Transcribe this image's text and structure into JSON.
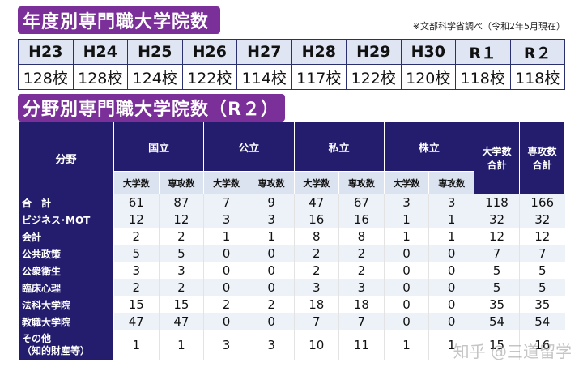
{
  "title1": "年度別専門職大学院数",
  "note": "※文部科学省調べ（令和2年5月現在）",
  "years": {
    "headers": [
      "H23",
      "H24",
      "H25",
      "H26",
      "H27",
      "H28",
      "H29",
      "H30",
      "R１",
      "R２"
    ],
    "values": [
      "128校",
      "128校",
      "124校",
      "122校",
      "114校",
      "117校",
      "122校",
      "120校",
      "118校",
      "118校"
    ]
  },
  "title2": "分野別専門職大学院数（R２）",
  "field": {
    "col_field": "分野",
    "groups": [
      "国立",
      "公立",
      "私立",
      "株立"
    ],
    "sub": [
      "大学数",
      "専攻数"
    ],
    "total_univ": "大学数\n合計",
    "total_major": "専攻数\n合計",
    "rows": [
      {
        "label": "合　計",
        "values": [
          "61",
          "87",
          "7",
          "9",
          "47",
          "67",
          "3",
          "3",
          "118",
          "166"
        ]
      },
      {
        "label": "ビジネス･MOT",
        "values": [
          "12",
          "12",
          "3",
          "3",
          "16",
          "16",
          "1",
          "1",
          "32",
          "32"
        ]
      },
      {
        "label": "会計",
        "values": [
          "2",
          "2",
          "1",
          "1",
          "8",
          "8",
          "1",
          "1",
          "12",
          "12"
        ]
      },
      {
        "label": "公共政策",
        "values": [
          "5",
          "5",
          "0",
          "0",
          "2",
          "2",
          "0",
          "0",
          "7",
          "7"
        ]
      },
      {
        "label": "公衆衛生",
        "values": [
          "3",
          "3",
          "0",
          "0",
          "2",
          "2",
          "0",
          "0",
          "5",
          "5"
        ]
      },
      {
        "label": "臨床心理",
        "values": [
          "2",
          "2",
          "0",
          "0",
          "3",
          "3",
          "0",
          "0",
          "5",
          "5"
        ]
      },
      {
        "label": "法科大学院",
        "values": [
          "15",
          "15",
          "2",
          "2",
          "18",
          "18",
          "0",
          "0",
          "35",
          "35"
        ]
      },
      {
        "label": "教職大学院",
        "values": [
          "47",
          "47",
          "0",
          "0",
          "7",
          "7",
          "0",
          "0",
          "54",
          "54"
        ]
      },
      {
        "label": "その他\n（知的財産等）",
        "values": [
          "1",
          "1",
          "3",
          "3",
          "10",
          "11",
          "1",
          "1",
          "15",
          "16"
        ]
      }
    ]
  },
  "watermark": "知乎 @三道留学"
}
